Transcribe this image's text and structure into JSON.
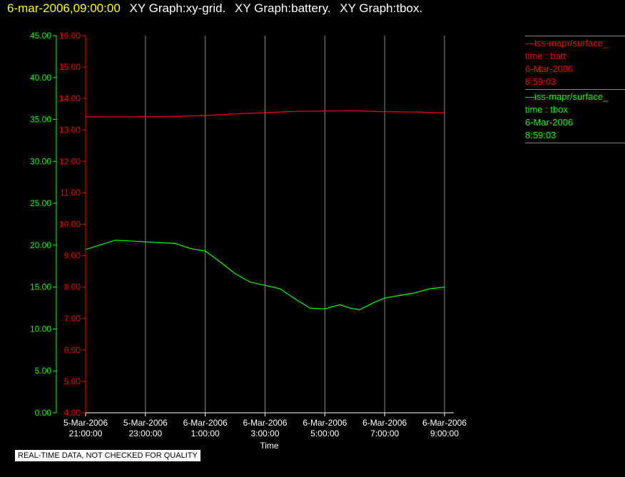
{
  "header": {
    "timestamp": "6-mar-2006,09:00:00",
    "graph_titles": [
      "XY Graph:xy-grid.",
      "XY Graph:battery.",
      "XY Graph:tbox."
    ]
  },
  "legend": [
    {
      "name": "iss-mapr/surface_",
      "vars": "time : batt",
      "date": "6-Mar-2006",
      "time": "8:59:03",
      "color": "#ff0000"
    },
    {
      "name": "iss-mapr/surface_",
      "vars": "time : tbox",
      "date": "6-Mar-2006",
      "time": "8:59:03",
      "color": "#00ff00"
    }
  ],
  "notice": "REAL-TIME DATA, NOT CHECKED FOR QUALITY",
  "chart_data": {
    "type": "line",
    "xlabel": "Time",
    "x_ticks": [
      {
        "date": "5-Mar-2006",
        "time": "21:00:00"
      },
      {
        "date": "5-Mar-2006",
        "time": "23:00:00"
      },
      {
        "date": "6-Mar-2006",
        "time": "1:00:00"
      },
      {
        "date": "6-Mar-2006",
        "time": "3:00:00"
      },
      {
        "date": "6-Mar-2006",
        "time": "5:00:00"
      },
      {
        "date": "6-Mar-2006",
        "time": "7:00:00"
      },
      {
        "date": "6-Mar-2006",
        "time": "9:00:00"
      }
    ],
    "x_range": [
      "5-Mar-2006 21:00:00",
      "6-Mar-2006 9:00:00"
    ],
    "grid": "vertical",
    "y_axes": [
      {
        "side": "left-outer",
        "color": "#00ff00",
        "ylim": [
          0,
          45
        ],
        "ticks": [
          "0.00",
          "5.00",
          "10.00",
          "15.00",
          "20.00",
          "25.00",
          "30.00",
          "35.00",
          "40.00",
          "45.00"
        ]
      },
      {
        "side": "left-inner",
        "color": "#ff0000",
        "ylim": [
          4,
          16
        ],
        "ticks": [
          "4.00",
          "5.00",
          "6.00",
          "7.00",
          "8.00",
          "9.00",
          "10.00",
          "11.00",
          "12.00",
          "13.00",
          "14.00",
          "15.00",
          "16.00"
        ]
      }
    ],
    "series": [
      {
        "name": "time : batt",
        "color": "#ff0000",
        "axis": 1,
        "points": [
          [
            "5-Mar-2006 21:00:00",
            13.42
          ],
          [
            "5-Mar-2006 22:00:00",
            13.41
          ],
          [
            "5-Mar-2006 23:00:00",
            13.42
          ],
          [
            "6-Mar-2006 0:00:00",
            13.43
          ],
          [
            "6-Mar-2006 1:00:00",
            13.46
          ],
          [
            "6-Mar-2006 2:00:00",
            13.51
          ],
          [
            "6-Mar-2006 3:00:00",
            13.55
          ],
          [
            "6-Mar-2006 4:00:00",
            13.59
          ],
          [
            "6-Mar-2006 5:00:00",
            13.6
          ],
          [
            "6-Mar-2006 6:00:00",
            13.61
          ],
          [
            "6-Mar-2006 7:00:00",
            13.58
          ],
          [
            "6-Mar-2006 8:00:00",
            13.57
          ],
          [
            "6-Mar-2006 9:00:00",
            13.54
          ]
        ]
      },
      {
        "name": "time : tbox",
        "color": "#00ff00",
        "axis": 0,
        "points": [
          [
            "5-Mar-2006 21:00:00",
            19.5
          ],
          [
            "5-Mar-2006 22:00:00",
            20.6
          ],
          [
            "5-Mar-2006 23:00:00",
            20.4
          ],
          [
            "6-Mar-2006 0:00:00",
            20.2
          ],
          [
            "6-Mar-2006 0:30:00",
            19.6
          ],
          [
            "6-Mar-2006 1:00:00",
            19.3
          ],
          [
            "6-Mar-2006 1:30:00",
            18.0
          ],
          [
            "6-Mar-2006 2:00:00",
            16.6
          ],
          [
            "6-Mar-2006 2:30:00",
            15.6
          ],
          [
            "6-Mar-2006 3:00:00",
            15.2
          ],
          [
            "6-Mar-2006 3:30:00",
            14.8
          ],
          [
            "6-Mar-2006 4:00:00",
            13.6
          ],
          [
            "6-Mar-2006 4:30:00",
            12.5
          ],
          [
            "6-Mar-2006 5:00:00",
            12.4
          ],
          [
            "6-Mar-2006 5:30:00",
            12.9
          ],
          [
            "6-Mar-2006 5:50:00",
            12.5
          ],
          [
            "6-Mar-2006 6:10:00",
            12.3
          ],
          [
            "6-Mar-2006 6:40:00",
            13.2
          ],
          [
            "6-Mar-2006 7:00:00",
            13.7
          ],
          [
            "6-Mar-2006 7:30:00",
            14.0
          ],
          [
            "6-Mar-2006 8:00:00",
            14.3
          ],
          [
            "6-Mar-2006 8:30:00",
            14.8
          ],
          [
            "6-Mar-2006 9:00:00",
            15.0
          ]
        ]
      }
    ]
  }
}
